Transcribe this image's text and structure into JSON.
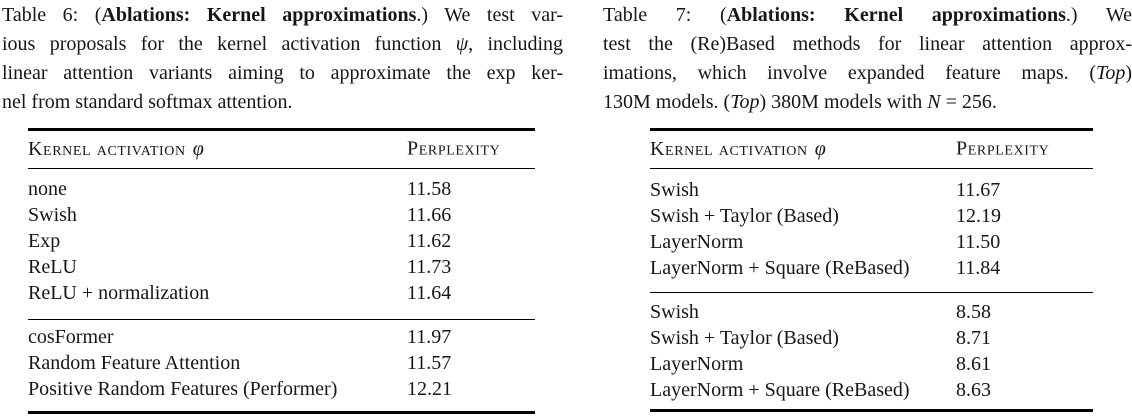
{
  "page": {
    "background": "#ffffff",
    "text_color": "#161616",
    "rule_color": "#000000"
  },
  "table6": {
    "caption_lines": [
      [
        {
          "t": "Table 6: ("
        },
        {
          "t": "Ablations: Kernel approximations",
          "b": true
        },
        {
          "t": ".) We test var-"
        }
      ],
      [
        {
          "t": "ious proposals for the kernel activation function "
        },
        {
          "t": "ψ",
          "i": true
        },
        {
          "t": ", including"
        }
      ],
      [
        {
          "t": "linear attention variants aiming to approximate the exp ker-"
        }
      ],
      [
        {
          "t": "nel from standard softmax attention."
        }
      ]
    ],
    "header": {
      "col1": "Kernel activation",
      "col1_symbol": "φ",
      "col2": "Perplexity"
    },
    "groups": [
      [
        [
          "none",
          "11.58"
        ],
        [
          "Swish",
          "11.66"
        ],
        [
          "Exp",
          "11.62"
        ],
        [
          "ReLU",
          "11.73"
        ],
        [
          "ReLU + normalization",
          "11.64"
        ]
      ],
      [
        [
          "cosFormer",
          "11.97"
        ],
        [
          "Random Feature Attention",
          "11.57"
        ],
        [
          "Positive Random Features (Performer)",
          "12.21"
        ]
      ]
    ]
  },
  "table7": {
    "caption_lines": [
      [
        {
          "t": "Table 7: ("
        },
        {
          "t": "Ablations: Kernel approximations",
          "b": true
        },
        {
          "t": ".) We"
        }
      ],
      [
        {
          "t": "test the (Re)Based methods for linear attention approx-"
        }
      ],
      [
        {
          "t": "imations, which involve expanded feature maps. ("
        },
        {
          "t": "Top",
          "i": true
        },
        {
          "t": ")"
        }
      ],
      [
        {
          "t": "130M models. ("
        },
        {
          "t": "Top",
          "i": true
        },
        {
          "t": ") 380M models with "
        },
        {
          "t": "N",
          "i": true
        },
        {
          "t": " = 256."
        }
      ]
    ],
    "header": {
      "col1": "Kernel activation",
      "col1_symbol": "φ",
      "col2": "Perplexity"
    },
    "groups": [
      [
        [
          "Swish",
          "11.67"
        ],
        [
          "Swish + Taylor (Based)",
          "12.19"
        ],
        [
          "LayerNorm",
          "11.50"
        ],
        [
          "LayerNorm + Square (ReBased)",
          "11.84"
        ]
      ],
      [
        [
          "Swish",
          "8.58"
        ],
        [
          "Swish + Taylor (Based)",
          "8.71"
        ],
        [
          "LayerNorm",
          "8.61"
        ],
        [
          "LayerNorm + Square (ReBased)",
          "8.63"
        ]
      ]
    ]
  }
}
